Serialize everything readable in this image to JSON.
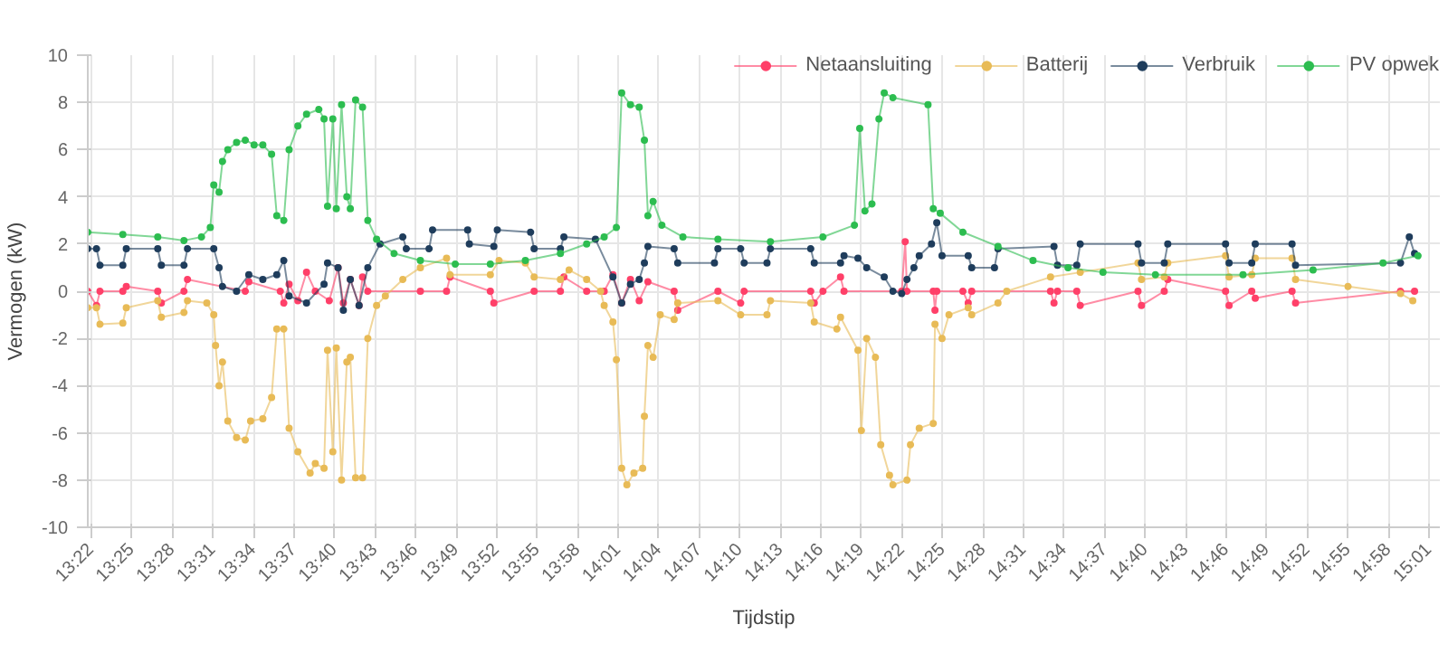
{
  "chart_data": {
    "type": "line",
    "xlabel": "Tijdstip",
    "ylabel": "Vermogen (kW)",
    "xlim": [
      13.3624,
      15.03
    ],
    "ylim": [
      -10,
      10
    ],
    "yticks": [
      -10,
      -8,
      -6,
      -4,
      -2,
      0,
      2,
      4,
      6,
      8,
      10
    ],
    "xticks": [
      {
        "value": 13.3667,
        "label": "13:22"
      },
      {
        "value": 13.4167,
        "label": "13:25"
      },
      {
        "value": 13.4667,
        "label": "13:28"
      },
      {
        "value": 13.5167,
        "label": "13:31"
      },
      {
        "value": 13.5667,
        "label": "13:34"
      },
      {
        "value": 13.6167,
        "label": "13:37"
      },
      {
        "value": 13.6667,
        "label": "13:40"
      },
      {
        "value": 13.7167,
        "label": "13:43"
      },
      {
        "value": 13.7667,
        "label": "13:46"
      },
      {
        "value": 13.8167,
        "label": "13:49"
      },
      {
        "value": 13.8667,
        "label": "13:52"
      },
      {
        "value": 13.9167,
        "label": "13:55"
      },
      {
        "value": 13.9667,
        "label": "13:58"
      },
      {
        "value": 14.0167,
        "label": "14:01"
      },
      {
        "value": 14.0667,
        "label": "14:04"
      },
      {
        "value": 14.1167,
        "label": "14:07"
      },
      {
        "value": 14.1667,
        "label": "14:10"
      },
      {
        "value": 14.2167,
        "label": "14:13"
      },
      {
        "value": 14.2667,
        "label": "14:16"
      },
      {
        "value": 14.3167,
        "label": "14:19"
      },
      {
        "value": 14.3667,
        "label": "14:22"
      },
      {
        "value": 14.4167,
        "label": "14:25"
      },
      {
        "value": 14.4667,
        "label": "14:28"
      },
      {
        "value": 14.5167,
        "label": "14:31"
      },
      {
        "value": 14.5667,
        "label": "14:34"
      },
      {
        "value": 14.6167,
        "label": "14:37"
      },
      {
        "value": 14.6667,
        "label": "14:40"
      },
      {
        "value": 14.7167,
        "label": "14:43"
      },
      {
        "value": 14.7667,
        "label": "14:46"
      },
      {
        "value": 14.8167,
        "label": "14:49"
      },
      {
        "value": 14.8667,
        "label": "14:52"
      },
      {
        "value": 14.9167,
        "label": "14:55"
      },
      {
        "value": 14.9667,
        "label": "14:58"
      },
      {
        "value": 15.0167,
        "label": "15:01"
      }
    ],
    "grid": true,
    "legend": "top",
    "marker": "circle",
    "line_style": "solid",
    "series": [
      {
        "name": "Netaansluiting",
        "color": "#ff4069",
        "x": [
          13.3624,
          13.3732,
          13.3775,
          13.4056,
          13.4099,
          13.4487,
          13.4531,
          13.4811,
          13.4854,
          13.5567,
          13.561,
          13.5999,
          13.6042,
          13.6107,
          13.6215,
          13.6322,
          13.643,
          13.6603,
          13.6711,
          13.6776,
          13.6862,
          13.697,
          13.7013,
          13.7078,
          13.7726,
          13.8049,
          13.8093,
          13.8589,
          13.8632,
          13.9129,
          13.9453,
          13.9496,
          13.9777,
          13.9993,
          14.0101,
          14.0209,
          14.0317,
          14.0425,
          14.0533,
          14.0856,
          14.09,
          14.1396,
          14.1677,
          14.172,
          14.2541,
          14.2584,
          14.2692,
          14.2908,
          14.2951,
          14.3663,
          14.3706,
          14.3728,
          14.4052,
          14.4073,
          14.4095,
          14.4418,
          14.4483,
          14.4526,
          14.5498,
          14.5541,
          14.5584,
          14.5822,
          14.5865,
          14.6577,
          14.662,
          14.6901,
          14.6944,
          14.7657,
          14.77,
          14.798,
          14.8023,
          14.8477,
          14.852,
          14.9815,
          14.9988
        ],
        "values": [
          0,
          -0.6,
          0,
          0,
          0.2,
          0,
          -0.5,
          0,
          0.5,
          0,
          0.4,
          0,
          -0.5,
          0.3,
          -0.4,
          0.8,
          0,
          -0.4,
          1.0,
          -0.5,
          0.5,
          -0.6,
          0.6,
          0,
          0,
          0,
          0.6,
          0,
          -0.5,
          0,
          0,
          0.6,
          0,
          0,
          0.7,
          -0.5,
          0.5,
          -0.4,
          0.4,
          0,
          -0.8,
          0,
          -0.5,
          0,
          0,
          -0.5,
          0,
          0.6,
          0,
          0,
          2.1,
          0,
          0,
          -0.8,
          0,
          0,
          -0.5,
          0,
          0,
          -0.5,
          0,
          0,
          -0.6,
          0,
          -0.6,
          0,
          0.5,
          0,
          -0.6,
          0,
          -0.3,
          0,
          -0.5,
          0,
          0
        ]
      },
      {
        "name": "Batterij",
        "color": "#e8bb57",
        "x": [
          13.3624,
          13.3732,
          13.3775,
          13.4056,
          13.4099,
          13.4487,
          13.4531,
          13.4811,
          13.4854,
          13.5092,
          13.5178,
          13.52,
          13.5243,
          13.5286,
          13.5351,
          13.5459,
          13.5567,
          13.5632,
          13.5783,
          13.5891,
          13.5955,
          13.6042,
          13.6107,
          13.6215,
          13.6366,
          13.643,
          13.6538,
          13.6581,
          13.6646,
          13.6689,
          13.6754,
          13.6819,
          13.6862,
          13.6927,
          13.7013,
          13.7078,
          13.7186,
          13.7294,
          13.751,
          13.7726,
          13.8049,
          13.8093,
          13.8589,
          13.8697,
          13.9021,
          13.9129,
          13.9453,
          13.9561,
          13.9777,
          13.9949,
          13.9993,
          14.0101,
          14.0144,
          14.0209,
          14.0273,
          14.036,
          14.0468,
          14.0489,
          14.0533,
          14.0597,
          14.0684,
          14.0856,
          14.09,
          14.1396,
          14.1677,
          14.2001,
          14.2044,
          14.2541,
          14.2584,
          14.2864,
          14.2908,
          14.3123,
          14.3166,
          14.3231,
          14.3339,
          14.3404,
          14.3512,
          14.3555,
          14.3728,
          14.3771,
          14.3879,
          14.4052,
          14.4073,
          14.416,
          14.4246,
          14.4483,
          14.4526,
          14.485,
          14.4958,
          14.5498,
          14.5865,
          14.6577,
          14.662,
          14.6901,
          14.6944,
          14.7657,
          14.77,
          14.798,
          14.8023,
          14.8477,
          14.852,
          14.9168,
          14.9815,
          14.9966
        ],
        "values": [
          -0.7,
          -0.7,
          -1.4,
          -1.35,
          -0.7,
          -0.4,
          -1.1,
          -0.9,
          -0.4,
          -0.5,
          -1.0,
          -2.3,
          -4.0,
          -3.0,
          -5.5,
          -6.2,
          -6.3,
          -5.5,
          -5.4,
          -4.5,
          -1.6,
          -1.6,
          -5.8,
          -6.8,
          -7.7,
          -7.3,
          -7.5,
          -2.5,
          -6.8,
          -2.4,
          -8.0,
          -3.0,
          -2.8,
          -7.9,
          -7.9,
          -2.0,
          -0.6,
          -0.2,
          0.5,
          1.0,
          1.4,
          0.7,
          0.7,
          1.3,
          1.2,
          0.6,
          0.5,
          0.9,
          0.5,
          0.0,
          -0.6,
          -1.3,
          -2.9,
          -7.5,
          -8.2,
          -7.7,
          -7.5,
          -5.3,
          -2.3,
          -2.8,
          -1.0,
          -1.2,
          -0.5,
          -0.4,
          -1.0,
          -1.0,
          -0.4,
          -0.5,
          -1.3,
          -1.6,
          -1.1,
          -2.5,
          -5.9,
          -2.0,
          -2.8,
          -6.5,
          -7.8,
          -8.2,
          -8.0,
          -6.5,
          -5.8,
          -5.6,
          -1.4,
          -2.0,
          -1.0,
          -0.7,
          -1.0,
          -0.5,
          0.0,
          0.6,
          0.8,
          1.2,
          0.5,
          0.6,
          1.2,
          1.5,
          0.6,
          0.7,
          1.4,
          1.4,
          0.5,
          0.2,
          -0.1,
          -0.4
        ]
      },
      {
        "name": "Verbruik",
        "color": "#1f3d5c",
        "x": [
          13.3624,
          13.3732,
          13.3775,
          13.4056,
          13.4099,
          13.4487,
          13.4531,
          13.4811,
          13.4854,
          13.5178,
          13.5243,
          13.5286,
          13.5459,
          13.561,
          13.5783,
          13.5955,
          13.6042,
          13.6107,
          13.6322,
          13.6538,
          13.6581,
          13.6711,
          13.6776,
          13.6862,
          13.697,
          13.7078,
          13.7229,
          13.751,
          13.7553,
          13.7834,
          13.7877,
          13.8309,
          13.833,
          13.8632,
          13.8675,
          13.9086,
          13.9129,
          13.9453,
          13.9496,
          13.9885,
          14.0101,
          14.0209,
          14.0317,
          14.0425,
          14.0489,
          14.0533,
          14.0856,
          14.09,
          14.1353,
          14.1396,
          14.1677,
          14.172,
          14.2001,
          14.2044,
          14.2541,
          14.2584,
          14.2908,
          14.2951,
          14.3123,
          14.3231,
          14.3447,
          14.3555,
          14.3663,
          14.3728,
          14.3814,
          14.3879,
          14.403,
          14.4095,
          14.416,
          14.4483,
          14.4526,
          14.4807,
          14.485,
          14.5541,
          14.5584,
          14.5822,
          14.5865,
          14.6577,
          14.662,
          14.6901,
          14.6944,
          14.7657,
          14.77,
          14.798,
          14.8023,
          14.8477,
          14.852,
          14.9815,
          14.9923,
          14.9988
        ],
        "values": [
          1.8,
          1.8,
          1.1,
          1.1,
          1.8,
          1.8,
          1.1,
          1.1,
          1.8,
          1.8,
          1.0,
          0.2,
          0.0,
          0.7,
          0.5,
          0.7,
          1.3,
          -0.2,
          -0.5,
          0.3,
          1.2,
          1.0,
          -0.8,
          0.5,
          -0.6,
          1.0,
          2.0,
          2.3,
          1.8,
          1.8,
          2.6,
          2.6,
          2.0,
          1.9,
          2.6,
          2.5,
          1.8,
          1.8,
          2.3,
          2.2,
          0.6,
          -0.5,
          0.3,
          0.5,
          1.2,
          1.9,
          1.8,
          1.2,
          1.2,
          1.8,
          1.8,
          1.2,
          1.2,
          1.8,
          1.8,
          1.2,
          1.2,
          1.5,
          1.4,
          1.0,
          0.6,
          0.0,
          -0.1,
          0.5,
          1.0,
          1.5,
          2.0,
          2.9,
          1.5,
          1.5,
          1.0,
          1.0,
          1.8,
          1.9,
          1.1,
          1.1,
          2.0,
          2.0,
          1.2,
          1.2,
          2.0,
          2.0,
          1.2,
          1.2,
          2.0,
          2.0,
          1.1,
          1.2,
          2.3,
          1.6
        ]
      },
      {
        "name": "PV opwek",
        "color": "#2dbd50",
        "x": [
          13.3624,
          13.4056,
          13.4487,
          13.4811,
          13.5027,
          13.5135,
          13.5178,
          13.5243,
          13.5286,
          13.5351,
          13.5459,
          13.5567,
          13.5675,
          13.5783,
          13.5891,
          13.5955,
          13.6042,
          13.6107,
          13.6215,
          13.6322,
          13.6474,
          13.6538,
          13.6581,
          13.6646,
          13.6689,
          13.6754,
          13.6819,
          13.6862,
          13.6927,
          13.7013,
          13.7078,
          13.7186,
          13.7402,
          13.7726,
          13.8157,
          13.8589,
          13.9021,
          13.9453,
          13.9777,
          13.9993,
          14.0144,
          14.0209,
          14.0317,
          14.0425,
          14.0489,
          14.0533,
          14.0597,
          14.0705,
          14.0964,
          14.1396,
          14.2044,
          14.2692,
          14.308,
          14.3145,
          14.321,
          14.3296,
          14.3382,
          14.3447,
          14.3555,
          14.3987,
          14.4052,
          14.4138,
          14.4418,
          14.485,
          14.5282,
          14.5714,
          14.6145,
          14.6793,
          14.7872,
          14.8736,
          14.9599,
          15.0031
        ],
        "values": [
          2.5,
          2.4,
          2.3,
          2.15,
          2.3,
          2.7,
          4.5,
          4.2,
          5.5,
          6.0,
          6.3,
          6.4,
          6.2,
          6.2,
          5.8,
          3.2,
          3.0,
          6.0,
          7.0,
          7.5,
          7.7,
          7.3,
          3.6,
          7.3,
          3.5,
          7.9,
          4.0,
          3.5,
          8.1,
          7.8,
          3.0,
          2.2,
          1.6,
          1.3,
          1.15,
          1.15,
          1.3,
          1.6,
          2.0,
          2.3,
          2.7,
          8.4,
          7.9,
          7.8,
          6.4,
          3.2,
          3.8,
          2.8,
          2.3,
          2.2,
          2.1,
          2.3,
          2.8,
          6.9,
          3.4,
          3.7,
          7.3,
          8.4,
          8.2,
          7.9,
          3.5,
          3.3,
          2.5,
          1.9,
          1.3,
          1.0,
          0.8,
          0.7,
          0.7,
          0.9,
          1.2,
          1.5
        ]
      }
    ]
  }
}
